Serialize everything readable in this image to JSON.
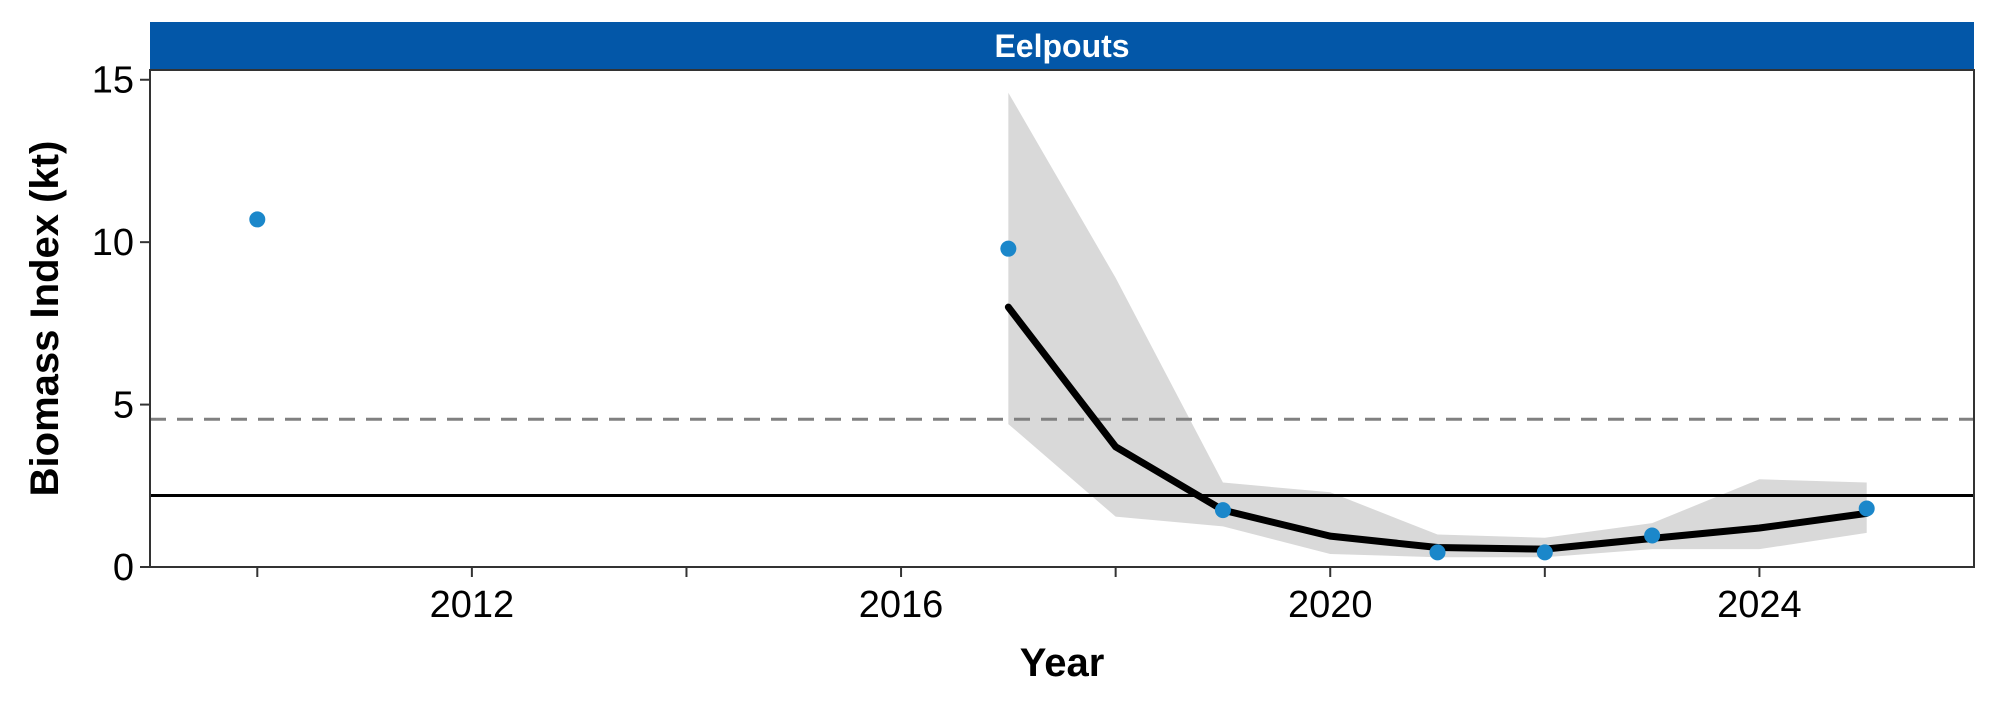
{
  "chart_data": {
    "type": "line",
    "facet_label": "Eelpouts",
    "xlabel": "Year",
    "ylabel": "Biomass Index (kt)",
    "xlim": [
      2009,
      2026
    ],
    "ylim": [
      0,
      15.3
    ],
    "x_ticks": [
      2012,
      2016,
      2020,
      2024
    ],
    "x_tick_labels": [
      "2012",
      "2016",
      "2020",
      "2024"
    ],
    "x_minor_ticks": [
      2010,
      2014,
      2018,
      2022
    ],
    "y_ticks": [
      0,
      5,
      10,
      15
    ],
    "y_tick_labels": [
      "0",
      "5",
      "10",
      "15"
    ],
    "grid": false,
    "reference_lines": [
      {
        "style": "dashed",
        "value": 4.55,
        "color": "#808080"
      },
      {
        "style": "solid",
        "value": 2.2,
        "color": "#000000"
      }
    ],
    "points": {
      "color": "#1B87CA",
      "x": [
        2010,
        2017,
        2019,
        2021,
        2022,
        2023,
        2025
      ],
      "y": [
        10.7,
        9.8,
        1.75,
        0.45,
        0.45,
        0.97,
        1.8
      ]
    },
    "trend": {
      "color": "#000000",
      "x": [
        2017,
        2018,
        2019,
        2020,
        2021,
        2022,
        2023,
        2024,
        2025
      ],
      "y": [
        8.0,
        3.7,
        1.75,
        0.95,
        0.6,
        0.55,
        0.88,
        1.2,
        1.65
      ]
    },
    "band": {
      "color": "#D9D9D9",
      "x": [
        2017,
        2018,
        2019,
        2020,
        2021,
        2022,
        2023,
        2024,
        2025
      ],
      "upper": [
        14.6,
        8.9,
        2.6,
        2.3,
        1.0,
        0.9,
        1.35,
        2.7,
        2.6
      ],
      "lower": [
        4.4,
        1.55,
        1.25,
        0.4,
        0.3,
        0.3,
        0.55,
        0.55,
        1.05
      ]
    },
    "strip_color": "#0357A8"
  }
}
